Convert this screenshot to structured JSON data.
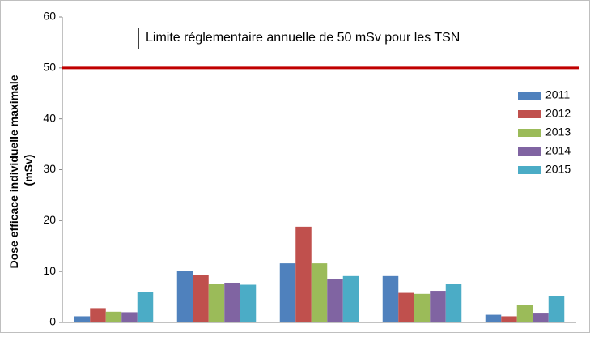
{
  "chart_data": {
    "type": "bar",
    "y_label": [
      "Dose efficace individuelle maximale",
      "(mSv)"
    ],
    "categories": [
      null,
      null,
      null,
      null,
      null
    ],
    "series": [
      {
        "name": "2011",
        "color": "#4f81bd",
        "values": [
          1.2,
          10.1,
          11.6,
          9.1,
          1.5
        ]
      },
      {
        "name": "2012",
        "color": "#c0504d",
        "values": [
          2.8,
          9.3,
          18.8,
          5.8,
          1.2
        ]
      },
      {
        "name": "2013",
        "color": "#9bbb59",
        "values": [
          2.1,
          7.6,
          11.6,
          5.6,
          3.4
        ]
      },
      {
        "name": "2014",
        "color": "#8064a2",
        "values": [
          2.0,
          7.8,
          8.5,
          6.2,
          1.9
        ]
      },
      {
        "name": "2015",
        "color": "#4bacc6",
        "values": [
          5.9,
          7.4,
          9.1,
          7.6,
          5.2
        ]
      }
    ],
    "reference_line": {
      "value": 50,
      "color": "#c00000",
      "label": "Limite réglementaire annuelle de 50 mSv pour les TSN"
    },
    "ylim": [
      0,
      60
    ],
    "yticks": [
      0,
      10,
      20,
      30,
      40,
      50,
      60
    ],
    "grid": false,
    "legend": "right"
  }
}
